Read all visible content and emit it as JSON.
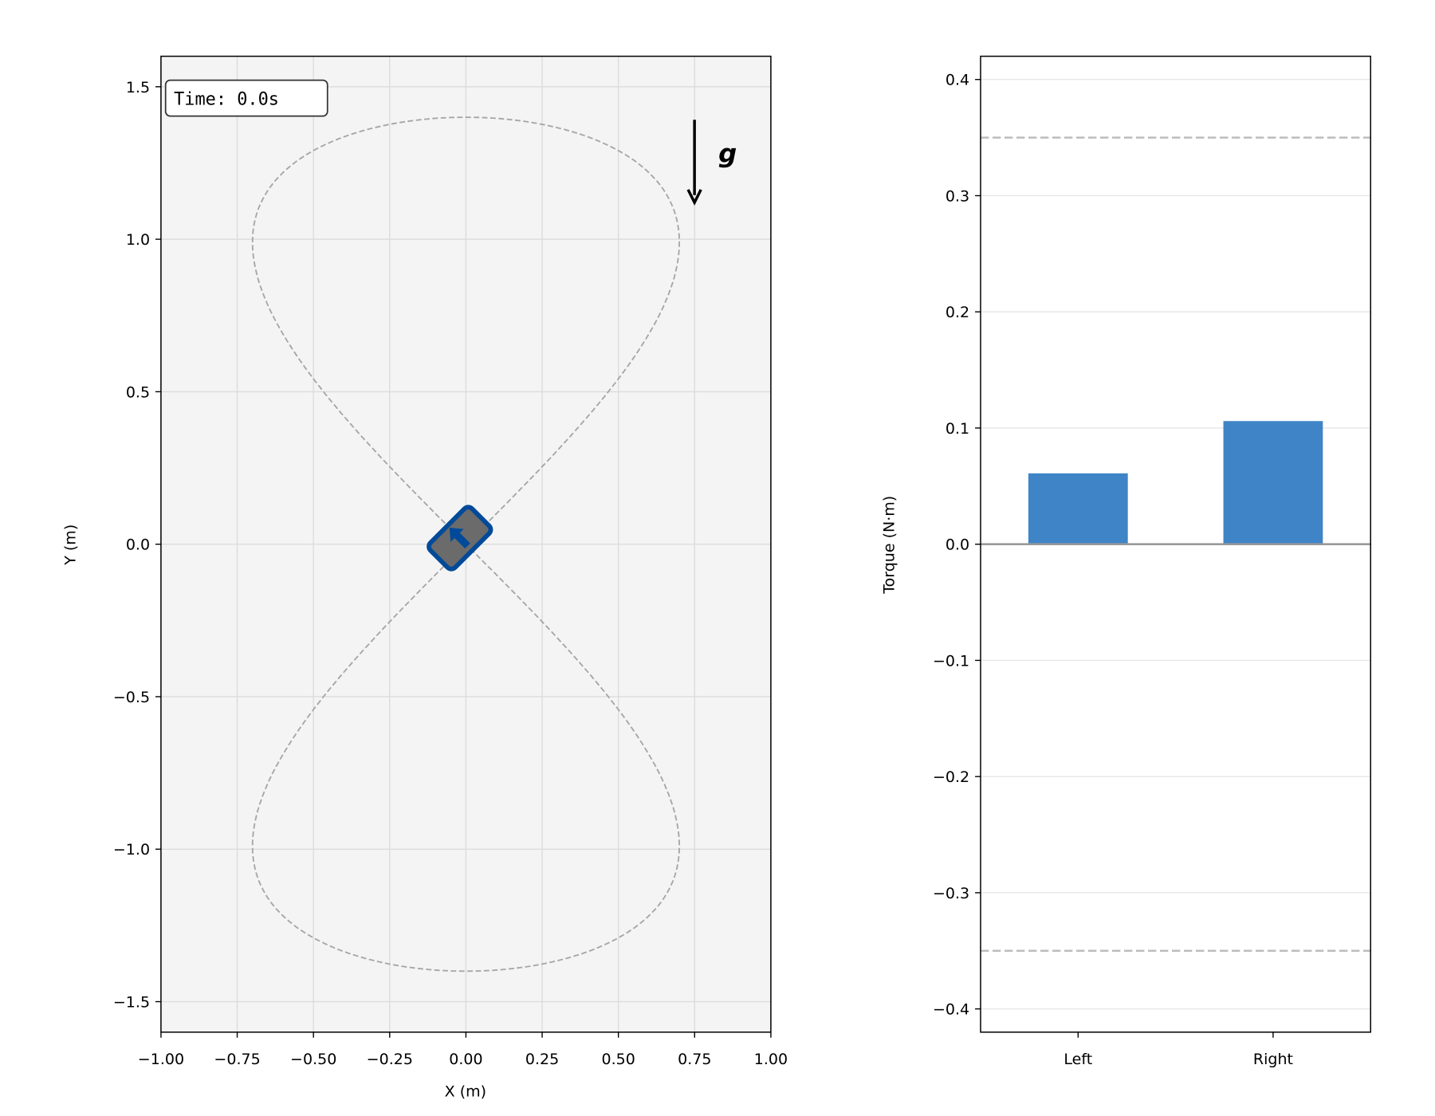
{
  "chart_data": [
    {
      "type": "line",
      "xlabel": "X (m)",
      "ylabel": "Y (m)",
      "xlim": [
        -1.0,
        1.0
      ],
      "ylim": [
        -1.6,
        1.6
      ],
      "grid": true,
      "background": "#f4f4f4",
      "xticks": [
        "−1.00",
        "−0.75",
        "−0.50",
        "−0.25",
        "0.00",
        "0.25",
        "0.50",
        "0.75",
        "1.00"
      ],
      "xtick_values": [
        -1,
        -0.75,
        -0.5,
        -0.25,
        0,
        0.25,
        0.5,
        0.75,
        1
      ],
      "yticks": [
        "−1.5",
        "−1.0",
        "−0.5",
        "0.0",
        "0.5",
        "1.0",
        "1.5"
      ],
      "ytick_values": [
        -1.5,
        -1,
        -0.5,
        0,
        0.5,
        1,
        1.5
      ],
      "reference_path": {
        "shape": "figure-eight",
        "x_amplitude": 0.7,
        "y_amplitude": 1.4,
        "style": "dashed",
        "color": "#a6a6a6"
      },
      "robot": {
        "x": -0.02,
        "y": 0.02,
        "heading_deg": 135,
        "body_color": "#6b6b6b",
        "outline_color": "#004a99"
      },
      "time_label": "Time: 0.0s",
      "gravity_label": "g"
    },
    {
      "type": "bar",
      "ylabel": "Torque (N·m)",
      "categories": [
        "Left",
        "Right"
      ],
      "values": [
        0.061,
        0.106
      ],
      "bar_color": "#3f84c6",
      "xlim": [
        -0.5,
        1.5
      ],
      "ylim": [
        -0.42,
        0.42
      ],
      "yticks": [
        "−0.4",
        "−0.3",
        "−0.2",
        "−0.1",
        "0.0",
        "0.1",
        "0.2",
        "0.3",
        "0.4"
      ],
      "ytick_values": [
        -0.4,
        -0.3,
        -0.2,
        -0.1,
        0,
        0.1,
        0.2,
        0.3,
        0.4
      ],
      "limit_lines": [
        0.35,
        -0.35
      ],
      "grid": "y"
    }
  ]
}
